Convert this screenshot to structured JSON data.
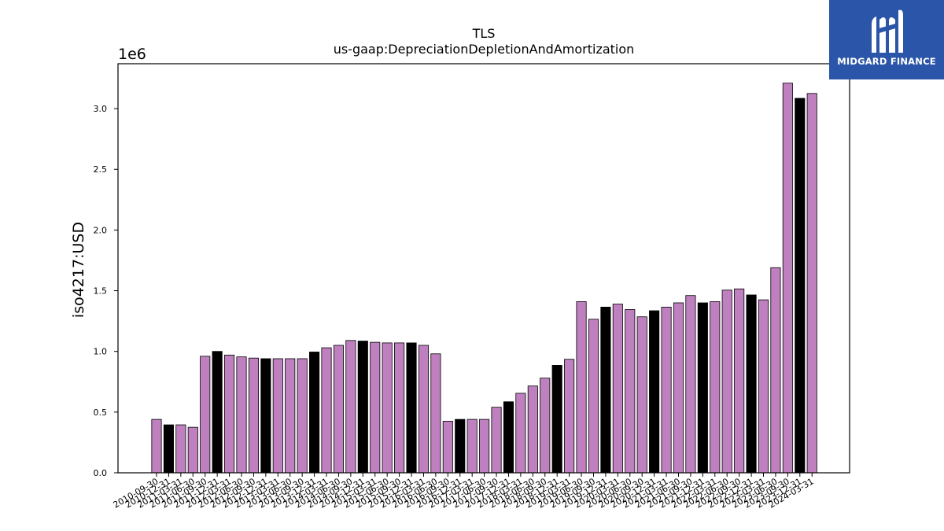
{
  "brand": {
    "name": "MIDGARD FINANCE",
    "color": "#2b55a8"
  },
  "chart_data": {
    "type": "bar",
    "title": "TLS",
    "subtitle": "us-gaap:DepreciationDepletionAndAmortization",
    "ylabel": "iso4217:USD",
    "xlabel": "",
    "offset_label": "1e6",
    "ylim": [
      0,
      3370000
    ],
    "yticks": [
      0.0,
      0.5,
      1.0,
      1.5,
      2.0,
      2.5,
      3.0
    ],
    "grid": false,
    "colors": {
      "default": "#bf80bf",
      "highlight": "#000000"
    },
    "categories": [
      "2010-09-30",
      "2010-12-31",
      "2011-03-31",
      "2011-06-30",
      "2011-09-30",
      "2011-12-31",
      "2012-03-31",
      "2012-06-30",
      "2012-09-30",
      "2012-12-31",
      "2013-03-31",
      "2013-06-30",
      "2013-09-30",
      "2013-12-31",
      "2014-03-31",
      "2014-06-30",
      "2014-09-30",
      "2014-12-31",
      "2015-03-31",
      "2015-06-30",
      "2015-09-30",
      "2015-12-31",
      "2016-03-31",
      "2016-06-30",
      "2016-09-30",
      "2016-12-31",
      "2017-03-31",
      "2017-06-30",
      "2017-09-30",
      "2017-12-31",
      "2018-03-31",
      "2018-06-30",
      "2018-09-30",
      "2018-12-31",
      "2019-03-31",
      "2019-06-30",
      "2019-09-30",
      "2019-12-31",
      "2020-03-31",
      "2020-06-30",
      "2020-09-30",
      "2020-12-31",
      "2021-03-31",
      "2021-06-30",
      "2021-09-30",
      "2021-12-31",
      "2022-03-31",
      "2022-06-30",
      "2022-09-30",
      "2022-12-31",
      "2023-03-31",
      "2023-06-30",
      "2023-09-30",
      "2023-12-31",
      "2024-03-31"
    ],
    "values": [
      440000,
      395000,
      395000,
      375000,
      960000,
      1000000,
      970000,
      955000,
      945000,
      940000,
      940000,
      940000,
      940000,
      995000,
      1030000,
      1050000,
      1090000,
      1085000,
      1075000,
      1070000,
      1070000,
      1070000,
      1050000,
      980000,
      425000,
      440000,
      440000,
      440000,
      540000,
      585000,
      655000,
      715000,
      780000,
      885000,
      935000,
      1410000,
      1265000,
      1365000,
      1390000,
      1345000,
      1285000,
      1335000,
      1365000,
      1400000,
      1460000,
      1400000,
      1410000,
      1505000,
      1515000,
      1465000,
      1425000,
      1690000,
      3210000,
      3085000,
      3125000
    ],
    "highlight": [
      false,
      true,
      false,
      false,
      false,
      true,
      false,
      false,
      false,
      true,
      false,
      false,
      false,
      true,
      false,
      false,
      false,
      true,
      false,
      false,
      false,
      true,
      false,
      false,
      false,
      true,
      false,
      false,
      false,
      true,
      false,
      false,
      false,
      true,
      false,
      false,
      false,
      true,
      false,
      false,
      false,
      true,
      false,
      false,
      false,
      true,
      false,
      false,
      false,
      true,
      false,
      false,
      false,
      true,
      false
    ]
  }
}
